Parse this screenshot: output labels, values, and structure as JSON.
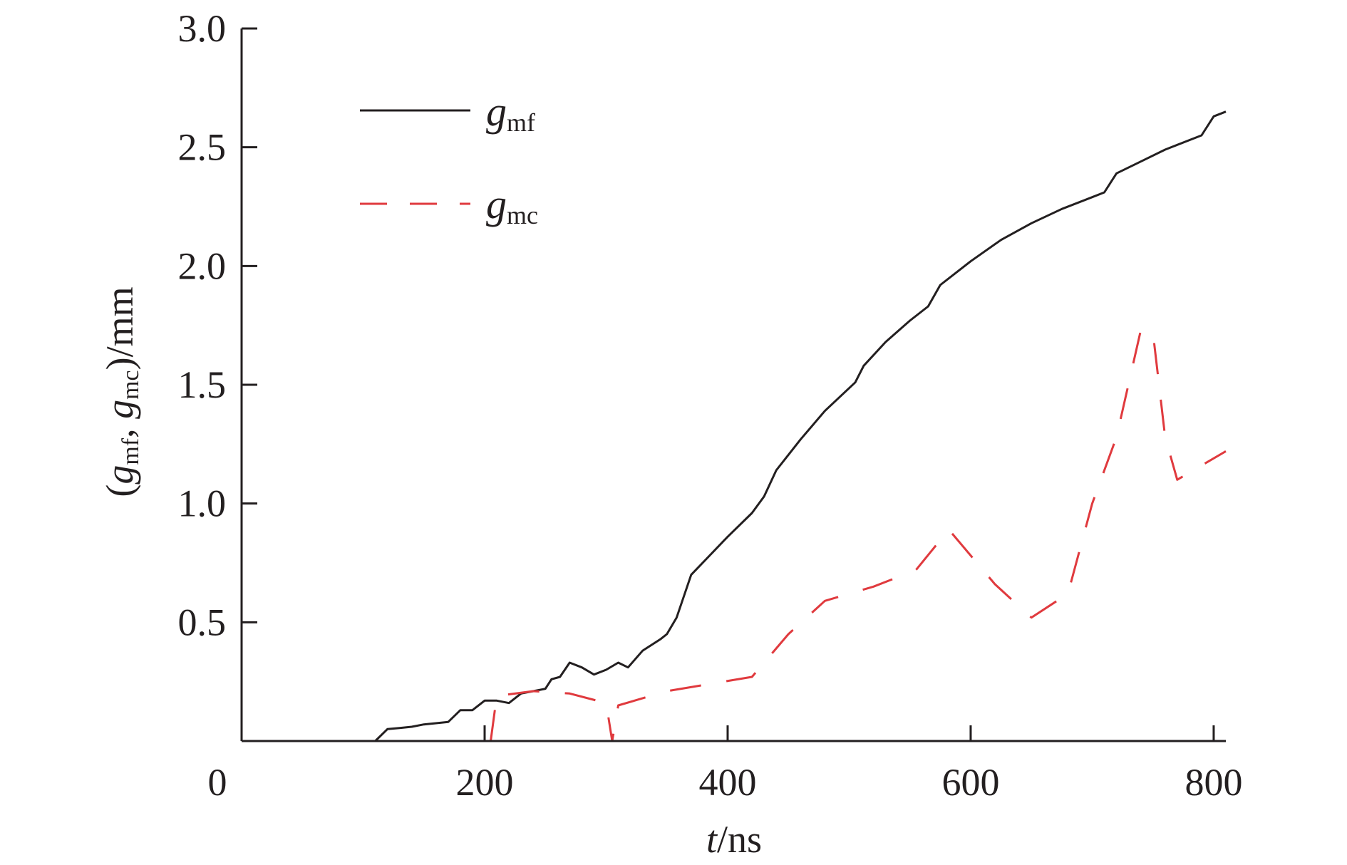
{
  "chart_data": {
    "type": "line",
    "xlabel": {
      "var": "t",
      "unit": "/ns"
    },
    "ylabel": {
      "open": "(",
      "g1": "g",
      "s1": "mf",
      "sep": ", ",
      "g2": "g",
      "s2": "mc",
      "close": ")/mm"
    },
    "xlim": [
      0,
      810
    ],
    "ylim": [
      0,
      3.0
    ],
    "xticks": [
      0,
      200,
      400,
      600,
      800
    ],
    "xtick_labels": [
      "0",
      "200",
      "400",
      "600",
      "800"
    ],
    "yticks": [
      0.5,
      1.0,
      1.5,
      2.0,
      2.5,
      3.0
    ],
    "ytick_labels": [
      "0.5",
      "1.0",
      "1.5",
      "2.0",
      "2.5",
      "3.0"
    ],
    "legend_position": "top-left",
    "series": [
      {
        "name": "g_mf",
        "label_main": "g",
        "label_sub": "mf",
        "style": "solid",
        "color": "#231f20",
        "points": [
          [
            0,
            0
          ],
          [
            110,
            0
          ],
          [
            120,
            0.05
          ],
          [
            130,
            0.055
          ],
          [
            140,
            0.06
          ],
          [
            150,
            0.07
          ],
          [
            160,
            0.075
          ],
          [
            170,
            0.08
          ],
          [
            180,
            0.13
          ],
          [
            190,
            0.13
          ],
          [
            200,
            0.17
          ],
          [
            210,
            0.17
          ],
          [
            220,
            0.16
          ],
          [
            230,
            0.2
          ],
          [
            240,
            0.21
          ],
          [
            250,
            0.22
          ],
          [
            255,
            0.26
          ],
          [
            262,
            0.27
          ],
          [
            270,
            0.33
          ],
          [
            280,
            0.31
          ],
          [
            290,
            0.28
          ],
          [
            300,
            0.3
          ],
          [
            310,
            0.33
          ],
          [
            318,
            0.31
          ],
          [
            330,
            0.38
          ],
          [
            345,
            0.43
          ],
          [
            350,
            0.45
          ],
          [
            358,
            0.52
          ],
          [
            362,
            0.58
          ],
          [
            370,
            0.7
          ],
          [
            385,
            0.78
          ],
          [
            400,
            0.86
          ],
          [
            420,
            0.96
          ],
          [
            430,
            1.03
          ],
          [
            440,
            1.14
          ],
          [
            460,
            1.27
          ],
          [
            480,
            1.39
          ],
          [
            505,
            1.51
          ],
          [
            512,
            1.58
          ],
          [
            530,
            1.68
          ],
          [
            550,
            1.77
          ],
          [
            565,
            1.83
          ],
          [
            575,
            1.92
          ],
          [
            600,
            2.02
          ],
          [
            625,
            2.11
          ],
          [
            650,
            2.18
          ],
          [
            675,
            2.24
          ],
          [
            700,
            2.29
          ],
          [
            710,
            2.31
          ],
          [
            720,
            2.39
          ],
          [
            740,
            2.44
          ],
          [
            760,
            2.49
          ],
          [
            790,
            2.55
          ],
          [
            800,
            2.63
          ],
          [
            810,
            2.65
          ]
        ]
      },
      {
        "name": "g_mc",
        "label_main": "g",
        "label_sub": "mc",
        "style": "dashed",
        "color": "#e03a3e",
        "points": [
          [
            205,
            0
          ],
          [
            210,
            0.19
          ],
          [
            240,
            0.21
          ],
          [
            270,
            0.2
          ],
          [
            300,
            0.16
          ],
          [
            305,
            0
          ],
          [
            310,
            0.15
          ],
          [
            350,
            0.21
          ],
          [
            420,
            0.27
          ],
          [
            450,
            0.45
          ],
          [
            480,
            0.59
          ],
          [
            520,
            0.65
          ],
          [
            555,
            0.72
          ],
          [
            582,
            0.89
          ],
          [
            620,
            0.66
          ],
          [
            650,
            0.52
          ],
          [
            680,
            0.62
          ],
          [
            700,
            1.0
          ],
          [
            720,
            1.28
          ],
          [
            740,
            1.73
          ],
          [
            750,
            1.72
          ],
          [
            760,
            1.28
          ],
          [
            770,
            1.1
          ],
          [
            810,
            1.22
          ]
        ]
      }
    ]
  }
}
